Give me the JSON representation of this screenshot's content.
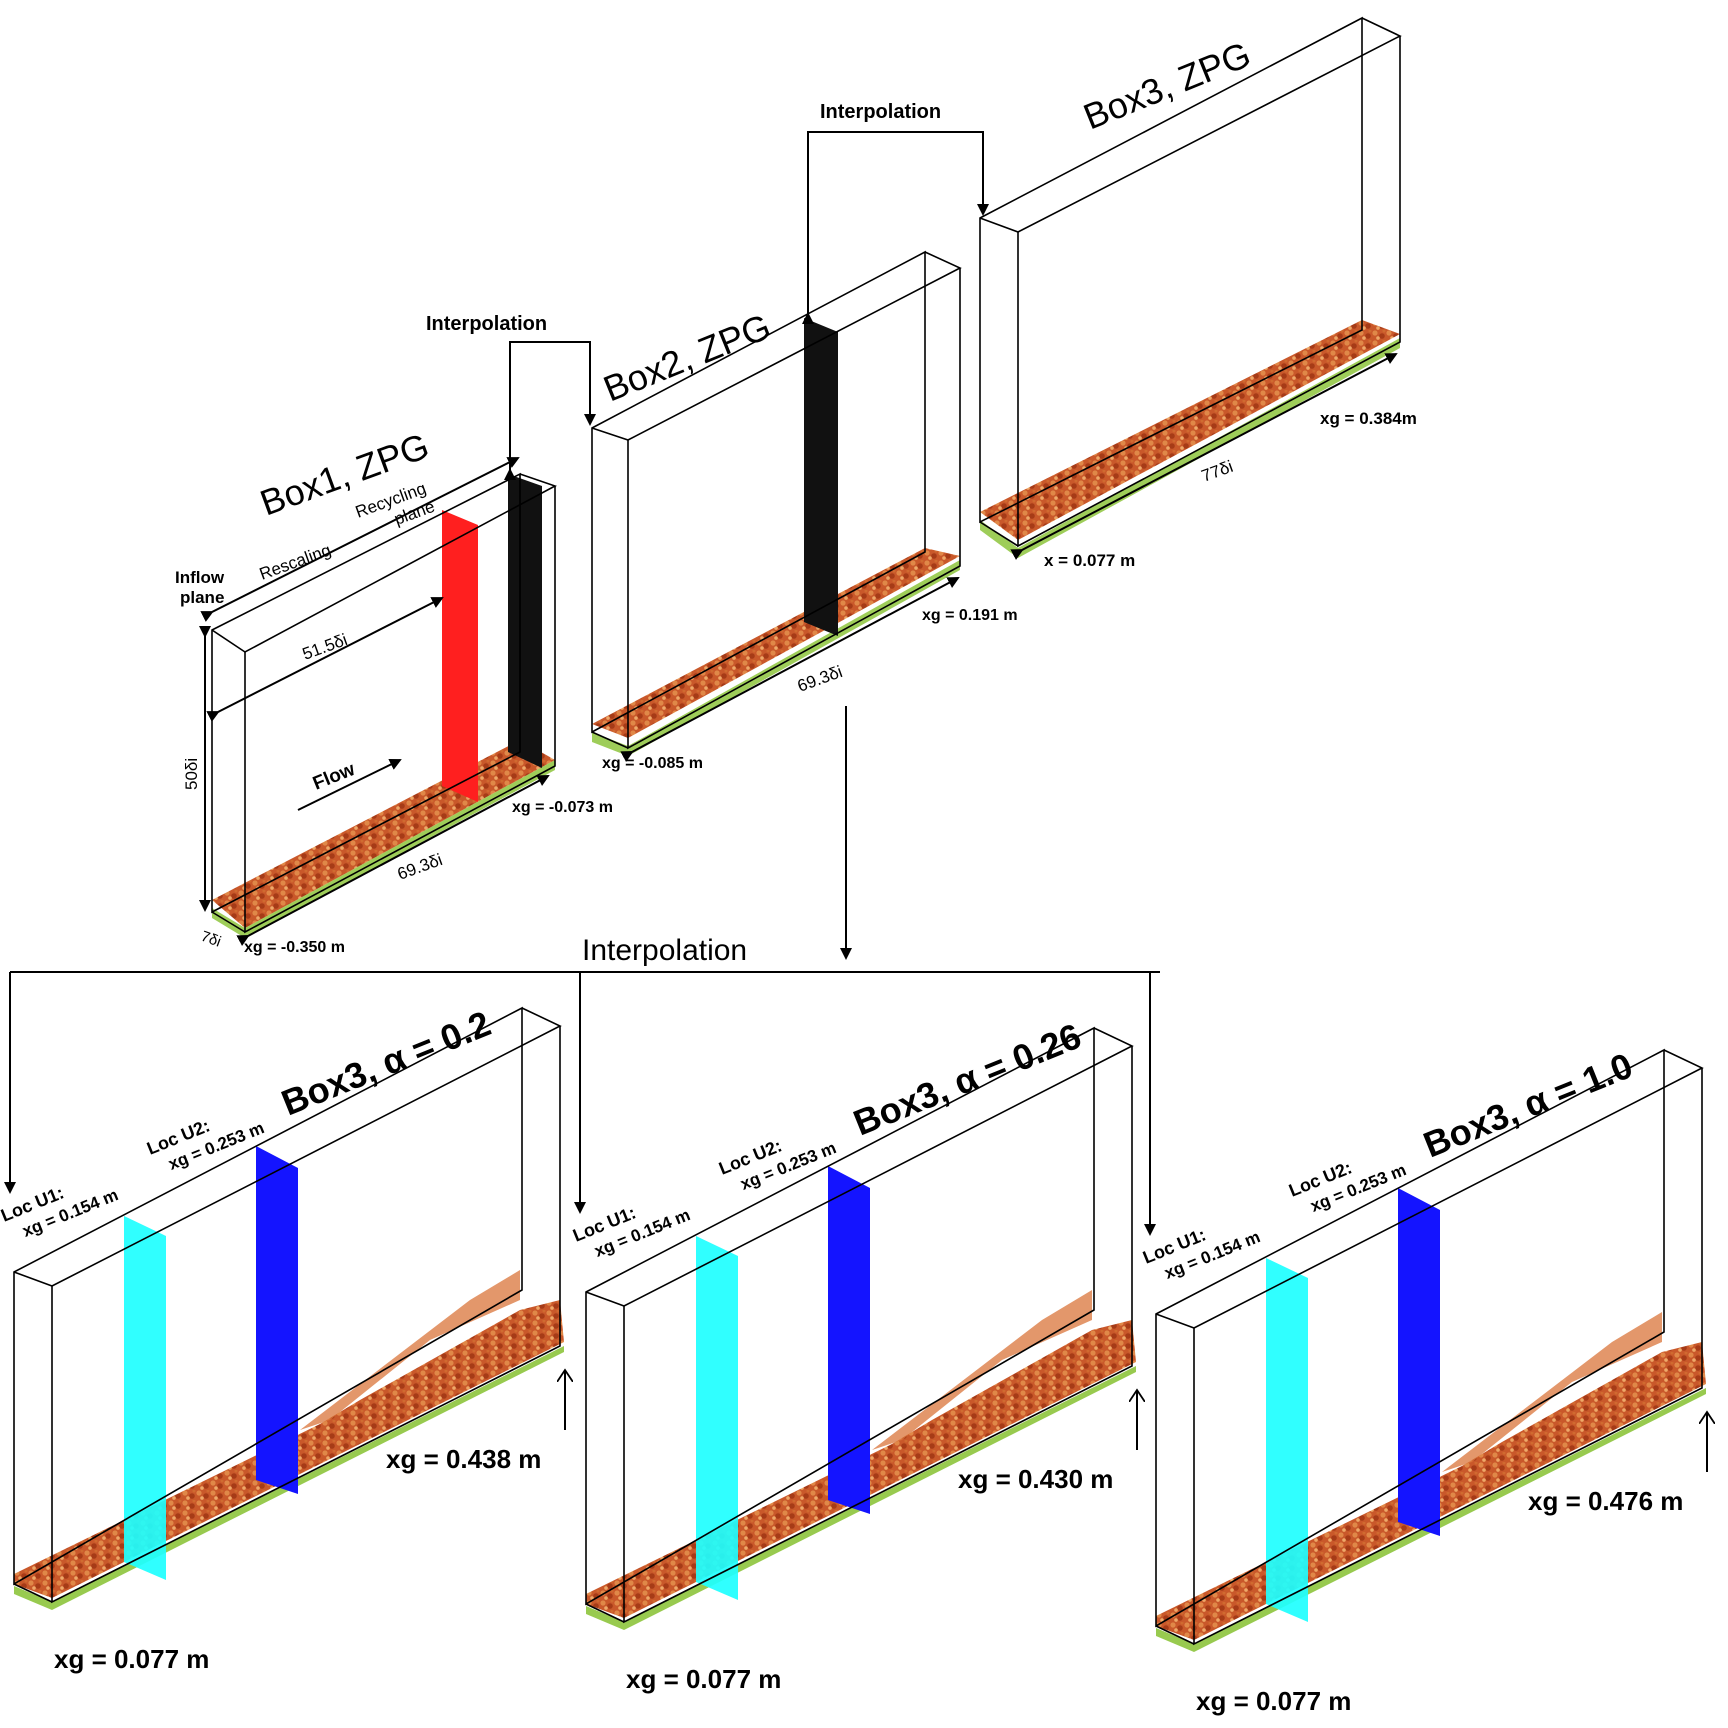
{
  "colors": {
    "turbulence_dark": "#b8431c",
    "turbulence_mid": "#d9743a",
    "turbulence_light": "#e8a062",
    "turbulence_green": "#8dc43c",
    "recycling_plane": "#ff1f1f",
    "interp_plane": "#111111",
    "loc_u1_plane": "#1effff",
    "loc_u2_plane": "#1414ff"
  },
  "top": {
    "box1": {
      "title": "Box1, ZPG",
      "inflow_label": "Inflow\nplane",
      "rescaling_label": "Rescaling",
      "recycling_label": "Recycling\nplane",
      "dim_recycle": "51.5δi",
      "dim_height": "50δi",
      "dim_length": "69.3δi",
      "dim_depth": "7δi",
      "flow_label": "Flow",
      "x_start": "xg = -0.350 m",
      "x_end": "xg = -0.073 m"
    },
    "box2": {
      "title": "Box2, ZPG",
      "dim_length": "69.3δi",
      "x_start": "xg = -0.085 m",
      "x_end": "xg = 0.191 m"
    },
    "box3": {
      "title": "Box3, ZPG",
      "dim_length": "77δi",
      "x_start": "x  = 0.077 m",
      "x_end": "xg = 0.384m"
    },
    "interp_1": "Interpolation",
    "interp_2": "Interpolation"
  },
  "bottom": {
    "interp_label": "Interpolation",
    "loc_u1": "Loc U1:",
    "loc_u1_x": "xg = 0.154 m",
    "loc_u2": "Loc U2:",
    "loc_u2_x": "xg = 0.253 m",
    "boxes": [
      {
        "title_box": "Box3, ",
        "title_alpha": "α = 0.2",
        "x_start": "xg = 0.077 m",
        "x_end": "xg = 0.438 m"
      },
      {
        "title_box": "Box3, ",
        "title_alpha": "α = 0.26",
        "x_start": "xg = 0.077 m",
        "x_end": "xg = 0.430 m"
      },
      {
        "title_box": "Box3, ",
        "title_alpha": "α = 1.0",
        "x_start": "xg = 0.077 m",
        "x_end": "xg = 0.476 m"
      }
    ]
  }
}
